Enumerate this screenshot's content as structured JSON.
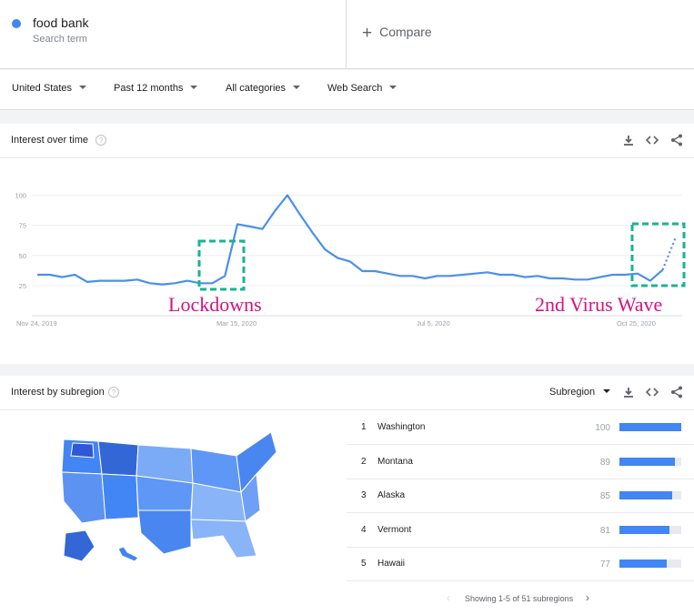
{
  "search": {
    "term": "food bank",
    "term_type": "Search term",
    "compare_label": "Compare"
  },
  "filters": {
    "region": "United States",
    "time": "Past 12 months",
    "category": "All categories",
    "property": "Web Search"
  },
  "interest_over_time": {
    "title": "Interest over time",
    "annotations": {
      "lockdowns": "Lockdowns",
      "second_wave": "2nd Virus Wave"
    },
    "chart_data": {
      "type": "line",
      "title": "Interest over time",
      "yticks": [
        25,
        50,
        75,
        100
      ],
      "ylim": [
        0,
        100
      ],
      "xtick_labels": [
        "Nov 24, 2019",
        "Mar 15, 2020",
        "Jul 5, 2020",
        "Oct 25, 2020"
      ],
      "xtick_weeks": [
        0,
        16,
        32,
        48
      ],
      "series": [
        {
          "name": "food bank",
          "color": "#4a90e8",
          "values": [
            34,
            34,
            32,
            34,
            28,
            29,
            29,
            29,
            30,
            27,
            26,
            27,
            29,
            27,
            27,
            33,
            76,
            74,
            72,
            87,
            100,
            84,
            69,
            55,
            48,
            45,
            37,
            37,
            35,
            33,
            33,
            31,
            33,
            33,
            34,
            35,
            36,
            34,
            34,
            32,
            33,
            31,
            31,
            30,
            30,
            32,
            34,
            34,
            35,
            29,
            38
          ],
          "partial_values": [
            38,
            64
          ]
        }
      ]
    }
  },
  "interest_by_subregion": {
    "title": "Interest by subregion",
    "dropdown": "Subregion",
    "rows": [
      {
        "rank": "1",
        "region": "Washington",
        "value": 100
      },
      {
        "rank": "2",
        "region": "Montana",
        "value": 89
      },
      {
        "rank": "3",
        "region": "Alaska",
        "value": 85
      },
      {
        "rank": "4",
        "region": "Vermont",
        "value": 81
      },
      {
        "rank": "5",
        "region": "Hawaii",
        "value": 77
      }
    ],
    "pager_text": "Showing 1-5 of 51 subregions"
  },
  "colors": {
    "accent": "#4285f4",
    "annotation_box": "#1ab394",
    "annotation_text": "#d6127f"
  }
}
